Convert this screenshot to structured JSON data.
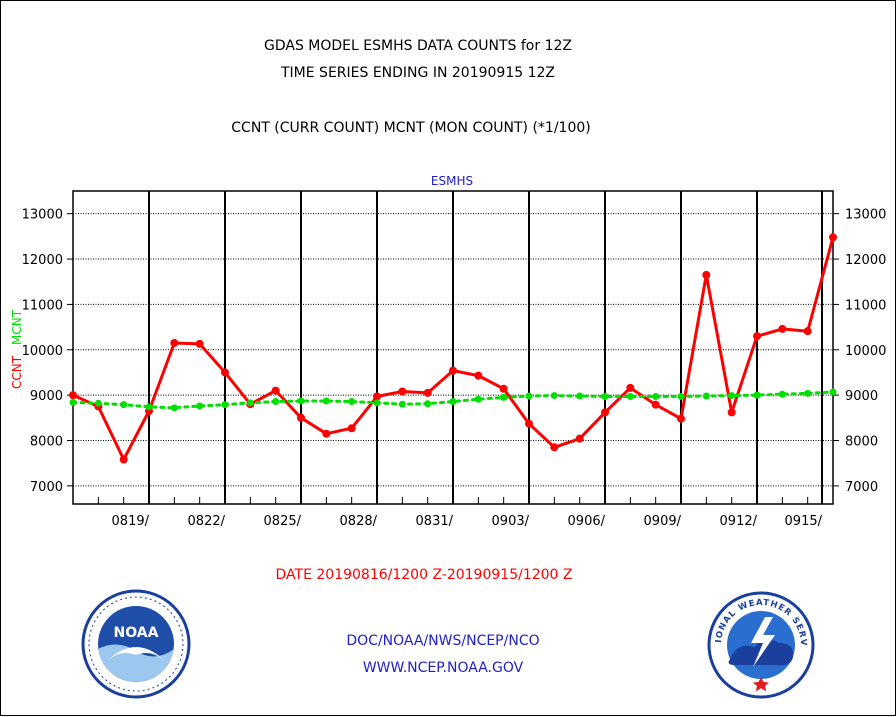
{
  "header": {
    "title_line1": "GDAS MODEL ESMHS DATA COUNTS for 12Z",
    "title_line2": "TIME SERIES ENDING IN 20190915 12Z",
    "subtitle": "CCNT (CURR COUNT) MCNT (MON COUNT) (*1/100)"
  },
  "date_range": "DATE 20190816/1200 Z-20190915/1200 Z",
  "footer": {
    "line1": "DOC/NOAA/NWS/NCEP/NCO",
    "line2": "WWW.NCEP.NOAA.GOV"
  },
  "colors": {
    "ccnt": "#ff0000",
    "mcnt": "#00e000",
    "panel_title": "#2020c8",
    "footer": "#2020c8"
  },
  "logos": {
    "left": "noaa-logo",
    "right": "national-weather-service-logo",
    "left_text": "NOAA",
    "right_text": "NATIONAL WEATHER SERVICE"
  },
  "chart_data": {
    "type": "line",
    "title": "ESMHS",
    "ylabel_series": [
      "CCNT",
      "MCNT"
    ],
    "ylim": [
      6600,
      13500
    ],
    "yticks": [
      7000,
      8000,
      9000,
      10000,
      11000,
      12000,
      13000
    ],
    "x_ticks": [
      "0819/",
      "0822/",
      "0825/",
      "0828/",
      "0831/",
      "0903/",
      "0906/",
      "0909/",
      "0912/",
      "0915/"
    ],
    "x": [
      "0816",
      "0817",
      "0818",
      "0819",
      "0820",
      "0821",
      "0822",
      "0823",
      "0824",
      "0825",
      "0826",
      "0827",
      "0828",
      "0829",
      "0830",
      "0831",
      "0901",
      "0902",
      "0903",
      "0904",
      "0905",
      "0906",
      "0907",
      "0908",
      "0909",
      "0910",
      "0911",
      "0912",
      "0913",
      "0914",
      "0915"
    ],
    "grid": true,
    "series": [
      {
        "name": "CCNT",
        "style": "solid",
        "values": [
          9000,
          8750,
          7580,
          8650,
          10150,
          10130,
          9500,
          8800,
          9100,
          8500,
          8150,
          8270,
          8970,
          9080,
          9050,
          9540,
          9430,
          9140,
          8370,
          7850,
          8040,
          8620,
          9160,
          8790,
          8480,
          11650,
          8620,
          10300,
          10460,
          10410,
          12480
        ]
      },
      {
        "name": "MCNT",
        "style": "dotted",
        "values": [
          8840,
          8820,
          8790,
          8740,
          8720,
          8760,
          8790,
          8830,
          8860,
          8870,
          8870,
          8860,
          8830,
          8800,
          8810,
          8860,
          8910,
          8950,
          8980,
          8990,
          8980,
          8970,
          8970,
          8970,
          8970,
          8980,
          8990,
          9000,
          9020,
          9040,
          9070
        ]
      }
    ]
  }
}
